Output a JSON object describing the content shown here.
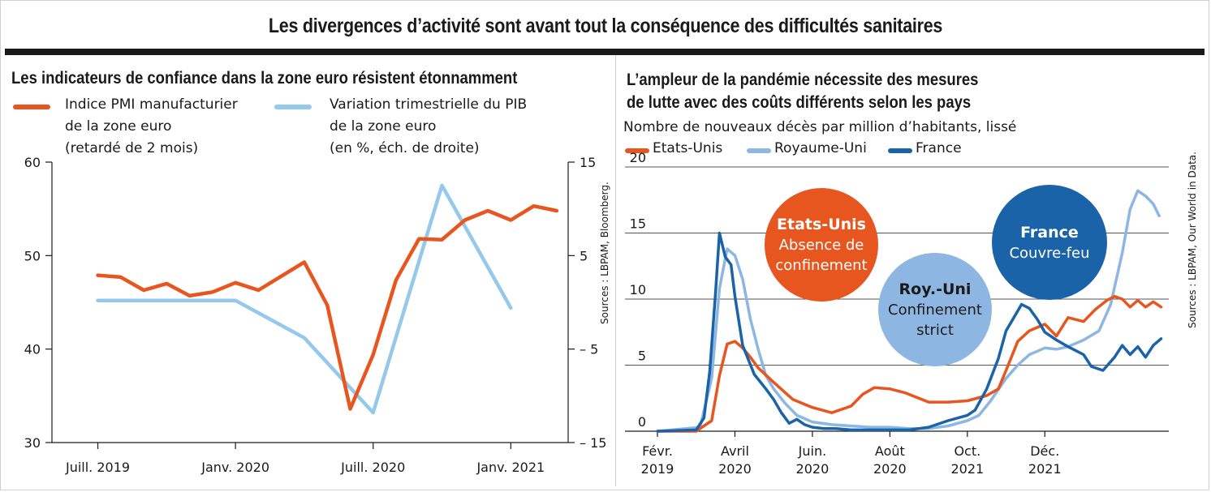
{
  "main_title": "Les divergences d’activité sont avant tout la conséquence des difficultés sanitaires",
  "colors": {
    "orange": "#e8561f",
    "light_blue": "#94c9ec",
    "dark_blue": "#1b63a8",
    "mid_blue": "#8db7e2"
  },
  "chart_data": [
    {
      "type": "line",
      "title": "Les indicateurs de confiance dans la zone euro résistent étonnamment",
      "legend": [
        {
          "line1": "Indice PMI manufacturier",
          "line2": "de la zone euro",
          "line3": "(retardé de 2 mois)"
        },
        {
          "line1": "Variation trimestrielle du PIB",
          "line2": "de la zone euro",
          "line3": "(en %, éch. de droite)"
        }
      ],
      "x_ticks": [
        "Juill. 2019",
        "Janv. 2020",
        "Juill. 2020",
        "Janv. 2021"
      ],
      "y_left": {
        "ylim": [
          30,
          60
        ],
        "ticks": [
          "30",
          "40",
          "50",
          "60"
        ]
      },
      "y_right": {
        "ylim": [
          -15,
          15
        ],
        "ticks": [
          "– 15",
          "– 5",
          "5",
          "15"
        ]
      },
      "source": "Sources : LBPAM, Bloomberg.",
      "series": [
        {
          "name": "Indice PMI manufacturier de la zone euro (retardé de 2 mois)",
          "axis": "left",
          "x": [
            0,
            1,
            2,
            3,
            4,
            5,
            6,
            7,
            8,
            9,
            10,
            11,
            12,
            13,
            14,
            15,
            16,
            17,
            18,
            19,
            20
          ],
          "values": [
            47.9,
            47.7,
            46.3,
            47.0,
            45.7,
            46.1,
            47.1,
            46.3,
            47.8,
            49.3,
            44.7,
            33.6,
            39.4,
            47.4,
            51.8,
            51.7,
            53.8,
            54.8,
            53.8,
            55.3,
            54.8
          ]
        },
        {
          "name": "Variation trimestrielle du PIB de la zone euro",
          "axis": "right",
          "x": [
            0,
            3,
            6,
            9,
            12,
            15,
            18
          ],
          "values": [
            0.2,
            0.2,
            0.2,
            -3.8,
            -11.8,
            12.5,
            -0.6
          ]
        }
      ]
    },
    {
      "type": "line",
      "title_line1": "L’ampleur de la pandémie nécessite des mesures",
      "title_line2": "de lutte avec des coûts différents selon les pays",
      "subtitle": "Nombre de nouveaux décès par million d’habitants, lissé",
      "legend": [
        "Etats-Unis",
        "Royaume-Uni",
        "France"
      ],
      "x_ticks": [
        {
          "line1": "Févr.",
          "line2": "2019"
        },
        {
          "line1": "Avril",
          "line2": "2020"
        },
        {
          "line1": "Juin.",
          "line2": "2020"
        },
        {
          "line1": "Août",
          "line2": "2020"
        },
        {
          "line1": "Oct.",
          "line2": "2021"
        },
        {
          "line1": "Déc.",
          "line2": "2021"
        }
      ],
      "ylim": [
        0,
        20
      ],
      "y_ticks": [
        "0",
        "5",
        "10",
        "15",
        "20"
      ],
      "source": "Sources : LBPAM, Our World in Data.",
      "annotations": [
        {
          "title": "Etats-Unis",
          "line1": "Absence de",
          "line2": "confinement"
        },
        {
          "title": "Roy.-Uni",
          "line1": "Confinement",
          "line2": "strict"
        },
        {
          "title": "France",
          "line1": "Couvre-feu"
        }
      ],
      "series": [
        {
          "name": "Etats-Unis",
          "x": [
            0,
            1.0,
            1.4,
            1.6,
            1.8,
            2.0,
            2.2,
            2.4,
            2.6,
            3.0,
            3.5,
            4.0,
            4.5,
            5.0,
            5.3,
            5.6,
            6.0,
            6.4,
            7.0,
            7.5,
            8.0,
            8.5,
            8.8,
            9.0,
            9.3,
            9.6,
            10.0,
            10.3,
            10.6,
            11.0,
            11.3,
            11.6,
            11.8,
            12.0,
            12.2,
            12.4,
            12.6,
            12.8,
            13.0
          ],
          "values": [
            0,
            0,
            0.8,
            4.2,
            6.6,
            6.8,
            6.3,
            5.6,
            4.8,
            3.7,
            2.4,
            1.8,
            1.4,
            1.9,
            2.8,
            3.3,
            3.2,
            2.9,
            2.2,
            2.2,
            2.3,
            2.7,
            3.2,
            4.6,
            6.8,
            7.6,
            8.1,
            7.2,
            8.6,
            8.3,
            9.2,
            9.9,
            10.2,
            10.0,
            9.4,
            9.9,
            9.4,
            9.8,
            9.4
          ]
        },
        {
          "name": "Royaume-Uni",
          "x": [
            0,
            1.1,
            1.4,
            1.6,
            1.8,
            2.0,
            2.2,
            2.4,
            2.6,
            2.8,
            3.0,
            3.3,
            3.6,
            4.0,
            4.5,
            5.0,
            5.5,
            6.0,
            6.5,
            7.0,
            7.5,
            8.0,
            8.3,
            8.6,
            9.0,
            9.3,
            9.6,
            10.0,
            10.3,
            10.6,
            11.0,
            11.4,
            11.7,
            12.0,
            12.2,
            12.4,
            12.6,
            12.8,
            12.95
          ],
          "values": [
            0,
            0.3,
            4.0,
            10.8,
            13.8,
            13.3,
            11.5,
            8.5,
            6.2,
            4.2,
            3.2,
            2.1,
            1.2,
            0.7,
            0.5,
            0.4,
            0.3,
            0.3,
            0.2,
            0.2,
            0.4,
            0.8,
            1.2,
            2.3,
            4.0,
            5.0,
            5.8,
            6.3,
            6.2,
            6.4,
            6.9,
            7.6,
            9.6,
            13.5,
            16.8,
            18.2,
            17.8,
            17.2,
            16.3
          ]
        },
        {
          "name": "France",
          "x": [
            0,
            1.0,
            1.2,
            1.35,
            1.5,
            1.6,
            1.75,
            1.9,
            2.0,
            2.2,
            2.5,
            2.8,
            3.0,
            3.2,
            3.4,
            3.6,
            3.8,
            4.0,
            4.3,
            4.6,
            5.0,
            5.5,
            6.0,
            6.5,
            7.0,
            7.5,
            8.0,
            8.2,
            8.5,
            8.8,
            9.0,
            9.2,
            9.4,
            9.6,
            9.8,
            10.0,
            10.3,
            10.6,
            11.0,
            11.2,
            11.5,
            11.8,
            12.0,
            12.2,
            12.4,
            12.6,
            12.8,
            13.0
          ],
          "values": [
            0,
            0.1,
            1.0,
            4.5,
            10.5,
            15.0,
            13.2,
            12.6,
            10.2,
            6.5,
            4.3,
            3.2,
            2.4,
            1.4,
            0.6,
            0.9,
            0.5,
            0.3,
            0.2,
            0.2,
            0.1,
            0.1,
            0.1,
            0.1,
            0.3,
            0.8,
            1.2,
            1.6,
            3.2,
            5.5,
            7.6,
            8.6,
            9.6,
            9.3,
            8.5,
            7.5,
            6.9,
            6.4,
            5.8,
            4.9,
            4.6,
            5.6,
            6.5,
            5.8,
            6.4,
            5.6,
            6.5,
            7.0
          ]
        }
      ]
    }
  ]
}
